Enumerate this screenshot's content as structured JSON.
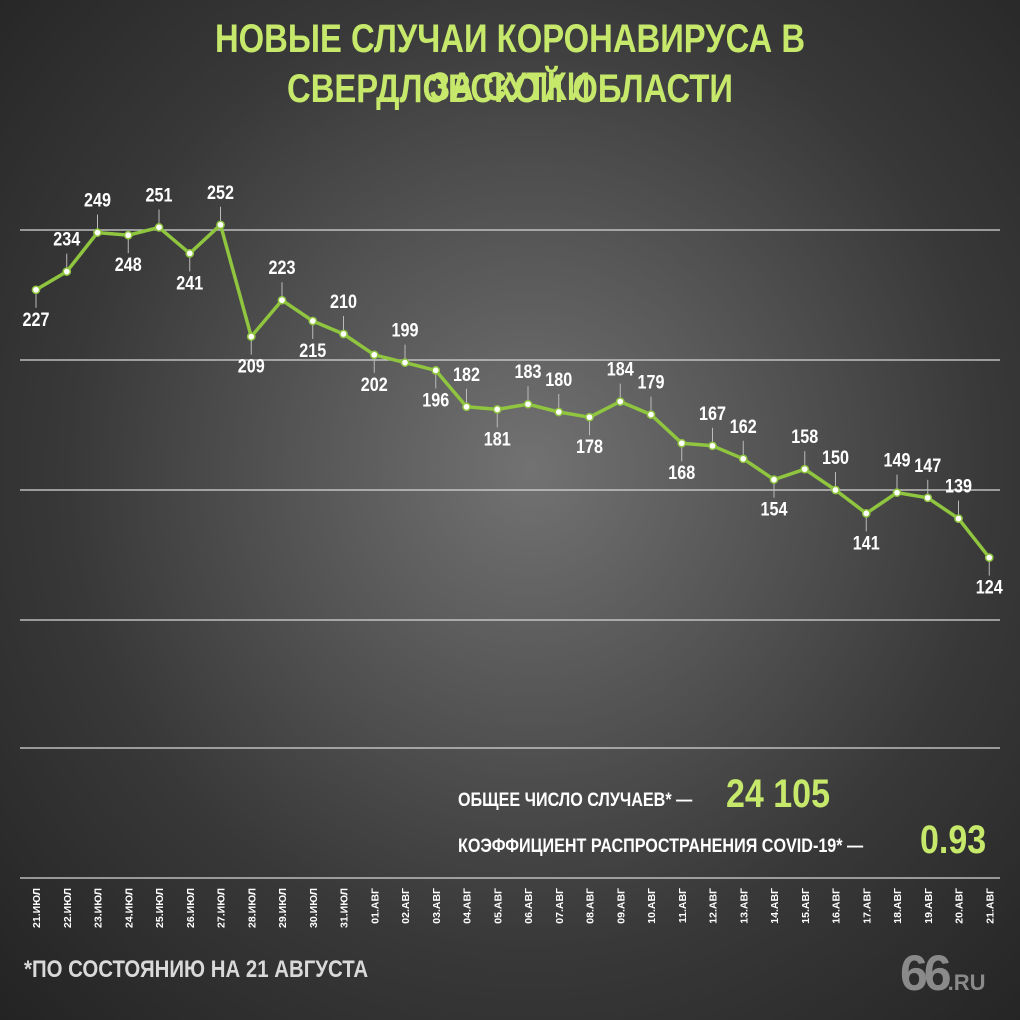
{
  "header": {
    "title_line1": "НОВЫЕ СЛУЧАИ КОРОНАВИРУСА В СВЕРДЛОВСКОЙ ОБЛАСТИ",
    "title_line2": "ЗА СУТКИ"
  },
  "stats": {
    "total_label": "ОБЩЕЕ ЧИСЛО СЛУЧАЕВ* —",
    "total_value": "24 105",
    "coef_label": "КОЭФФИЦИЕНТ РАСПРОСТРАНЕНИЯ COVID-19* —",
    "coef_value": "0.93"
  },
  "footnote": "*ПО СОСТОЯНИЮ НА 21 АВГУСТА",
  "logo": {
    "number": "66",
    "domain": ".RU"
  },
  "colors": {
    "accent": "#c6e86b",
    "line": "#8fc53f",
    "text": "#ffffff",
    "grid": "#d8d8d8"
  },
  "chart_data": {
    "type": "line",
    "title": "НОВЫЕ СЛУЧАИ КОРОНАВИРУСА В СВЕРДЛОВСКОЙ ОБЛАСТИ ЗА СУТКИ",
    "categories": [
      "21.ИЮЛ",
      "22.ИЮЛ",
      "23.ИЮЛ",
      "24.ИЮЛ",
      "25.ИЮЛ",
      "26.ИЮЛ",
      "27.ИЮЛ",
      "28.ИЮЛ",
      "29.ИЮЛ",
      "30.ИЮЛ",
      "31.ИЮЛ",
      "01.АВГ",
      "02.АВГ",
      "03.АВГ",
      "04.АВГ",
      "05.АВГ",
      "06.АВГ",
      "07.АВГ",
      "08.АВГ",
      "09.АВГ",
      "10.АВГ",
      "11.АВГ",
      "12.АВГ",
      "13.АВГ",
      "14.АВГ",
      "15.АВГ",
      "16.АВГ",
      "17.АВГ",
      "18.АВГ",
      "19.АВГ",
      "20.АВГ",
      "21.АВГ"
    ],
    "values": [
      227,
      234,
      249,
      248,
      251,
      241,
      252,
      209,
      223,
      215,
      210,
      202,
      199,
      196,
      182,
      181,
      183,
      180,
      178,
      184,
      179,
      168,
      167,
      162,
      154,
      158,
      150,
      141,
      149,
      147,
      139,
      124
    ],
    "label_position": [
      "below",
      "above",
      "above",
      "below",
      "above",
      "below",
      "above",
      "below",
      "above",
      "below",
      "above",
      "below",
      "above",
      "below",
      "above",
      "below",
      "above",
      "above",
      "below",
      "above",
      "above",
      "below",
      "above",
      "above",
      "below",
      "above",
      "above",
      "below",
      "above",
      "above",
      "above",
      "below"
    ],
    "ylim": [
      50,
      300
    ],
    "grid": true,
    "legend": "none"
  }
}
